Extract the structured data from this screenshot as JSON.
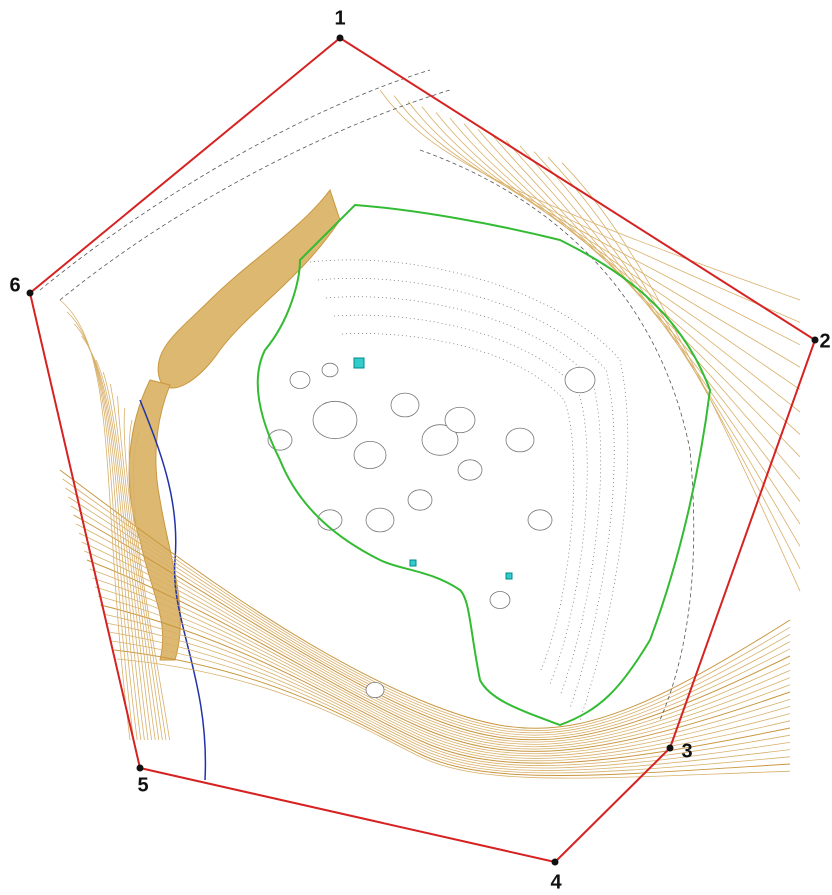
{
  "boundary_points": [
    "1",
    "2",
    "3",
    "4",
    "5",
    "6"
  ]
}
